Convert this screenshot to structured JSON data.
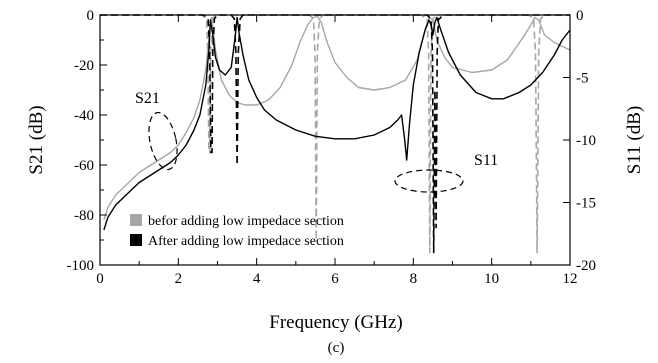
{
  "chart_data": {
    "type": "line",
    "xlabel": "Frequency (GHz)",
    "ylabel_left": "S21 (dB)",
    "ylabel_right": "S11 (dB)",
    "caption": "(c)",
    "xlim": [
      0,
      12
    ],
    "ylim_left": [
      -100,
      0
    ],
    "ylim_right": [
      -20,
      0
    ],
    "x_ticks": [
      0,
      2,
      4,
      6,
      8,
      10,
      12
    ],
    "y_left_ticks": [
      0,
      -20,
      -40,
      -60,
      -80,
      -100
    ],
    "y_right_ticks": [
      0,
      -5,
      -10,
      -15,
      -20
    ],
    "legend": [
      {
        "label": "befor adding low impedace section",
        "color": "#a6a6a6"
      },
      {
        "label": "After adding low impedace section",
        "color": "#000000"
      }
    ],
    "annotations": [
      {
        "text": "S21",
        "x": 1.4,
        "y": -28
      },
      {
        "text": "S11",
        "x": 9.3,
        "y": -60
      }
    ],
    "series": [
      {
        "color": "#a6a6a6",
        "dash": "solid",
        "axis": "left",
        "x": [
          0.1,
          0.2,
          0.4,
          0.6,
          0.8,
          1.0,
          1.2,
          1.4,
          1.6,
          1.8,
          2.0,
          2.2,
          2.4,
          2.55,
          2.7,
          2.8,
          2.85,
          2.95,
          3.1,
          3.3,
          3.5,
          3.7,
          4.0,
          4.3,
          4.6,
          4.9,
          5.1,
          5.3,
          5.45,
          5.55,
          5.65,
          5.8,
          6.0,
          6.3,
          6.6,
          7.0,
          7.4,
          7.8,
          8.1,
          8.3,
          8.4,
          8.5,
          8.6,
          8.8,
          9.0,
          9.5,
          10.0,
          10.4,
          10.8,
          11.0,
          11.1,
          11.2,
          11.35,
          11.6,
          12.0
        ],
        "y": [
          -82,
          -77,
          -72,
          -69,
          -66,
          -63,
          -61,
          -59,
          -57,
          -55,
          -52,
          -47,
          -41,
          -34,
          -22,
          -6,
          -1,
          -14,
          -26,
          -32,
          -35,
          -36,
          -36,
          -34,
          -29,
          -20,
          -11,
          -4,
          -1,
          -0.5,
          -3,
          -11,
          -19,
          -25,
          -29,
          -30,
          -29,
          -26,
          -18,
          -6,
          -1,
          -2,
          -10,
          -17,
          -21,
          -23,
          -22,
          -18,
          -9,
          -4,
          -1,
          -2,
          -8,
          -11,
          -14
        ]
      },
      {
        "color": "#a6a6a6",
        "dash": "dashed",
        "axis": "right",
        "x": [
          0,
          2.6,
          2.72,
          2.75,
          2.78,
          2.8,
          2.83,
          2.88,
          2.95,
          3.4,
          5.35,
          5.45,
          5.49,
          5.52,
          5.55,
          5.6,
          5.7,
          8.2,
          8.35,
          8.39,
          8.42,
          8.45,
          8.5,
          8.6,
          10.95,
          11.07,
          11.12,
          11.16,
          11.2,
          11.25,
          11.35,
          12.0
        ],
        "y": [
          0,
          0,
          -0.3,
          -3,
          -11,
          -11,
          -3,
          -0.3,
          0,
          0,
          0,
          -0.3,
          -3,
          -18,
          -3,
          -0.3,
          0,
          0,
          -0.3,
          -3,
          -19,
          -3,
          -0.3,
          0,
          0,
          -0.3,
          -3,
          -19,
          -3,
          -0.3,
          0,
          0
        ]
      },
      {
        "color": "#000000",
        "dash": "solid",
        "axis": "left",
        "x": [
          0.1,
          0.2,
          0.4,
          0.6,
          0.8,
          1.0,
          1.2,
          1.4,
          1.6,
          1.8,
          2.0,
          2.2,
          2.4,
          2.55,
          2.7,
          2.78,
          2.82,
          2.88,
          2.95,
          3.05,
          3.2,
          3.35,
          3.45,
          3.5,
          3.55,
          3.65,
          3.8,
          4.0,
          4.2,
          4.5,
          5.0,
          5.5,
          6.0,
          6.5,
          7.0,
          7.4,
          7.6,
          7.7,
          7.78,
          7.83,
          7.9,
          8.0,
          8.15,
          8.3,
          8.4,
          8.45,
          8.5,
          8.55,
          8.6,
          8.7,
          8.9,
          9.2,
          9.6,
          10.0,
          10.3,
          10.7,
          11.0,
          11.3,
          11.6,
          11.8,
          12.0
        ],
        "y": [
          -86,
          -81,
          -76,
          -73,
          -70,
          -67,
          -65,
          -63,
          -61,
          -59,
          -56,
          -52,
          -46,
          -40,
          -28,
          -14,
          -2,
          -8,
          -17,
          -22,
          -24,
          -21,
          -9,
          -1,
          -7,
          -16,
          -26,
          -33,
          -38,
          -42,
          -46,
          -48.5,
          -49.5,
          -49.5,
          -48,
          -45,
          -42,
          -40,
          -50,
          -58,
          -44,
          -28,
          -15,
          -6,
          -2,
          -4,
          -8,
          -3,
          -1,
          -6,
          -15,
          -24,
          -31,
          -33.5,
          -33.5,
          -31,
          -28,
          -23,
          -16,
          -10,
          -6
        ]
      },
      {
        "color": "#000000",
        "dash": "dashed",
        "axis": "right",
        "x": [
          0,
          2.65,
          2.76,
          2.8,
          2.83,
          2.86,
          2.88,
          2.92,
          3.0,
          3.35,
          3.43,
          3.47,
          3.5,
          3.53,
          3.58,
          3.65,
          8.35,
          8.45,
          8.49,
          8.52,
          8.55,
          8.58,
          8.61,
          8.64,
          8.67,
          8.75,
          12.0
        ],
        "y": [
          0,
          0,
          -0.3,
          -3,
          -11,
          -11,
          -3,
          -0.3,
          0,
          0,
          -0.3,
          -3,
          -12,
          -3,
          -0.3,
          0,
          0,
          -0.3,
          -3,
          -19,
          -6,
          -17,
          -3,
          -0.3,
          -0.3,
          0,
          0
        ]
      }
    ]
  }
}
